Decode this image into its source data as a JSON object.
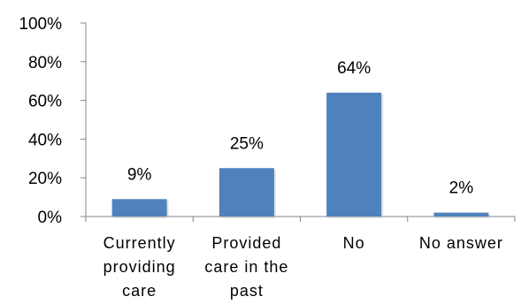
{
  "chart_data": {
    "type": "bar",
    "title": "",
    "xlabel": "",
    "ylabel": "",
    "categories": [
      [
        "Currently",
        "providing",
        "care"
      ],
      [
        "Provided",
        "care in the",
        "past"
      ],
      [
        "No"
      ],
      [
        "No answer"
      ]
    ],
    "values": [
      9,
      25,
      64,
      2
    ],
    "value_labels": [
      "9%",
      "25%",
      "64%",
      "2%"
    ],
    "ylim": [
      0,
      100
    ],
    "yticks": [
      0,
      20,
      40,
      60,
      80,
      100
    ],
    "ytick_labels": [
      "0%",
      "20%",
      "40%",
      "60%",
      "80%",
      "100%"
    ],
    "grid": false,
    "legend": "none",
    "colors": {
      "bar": "#4F81BD",
      "axis": "#868686"
    }
  }
}
